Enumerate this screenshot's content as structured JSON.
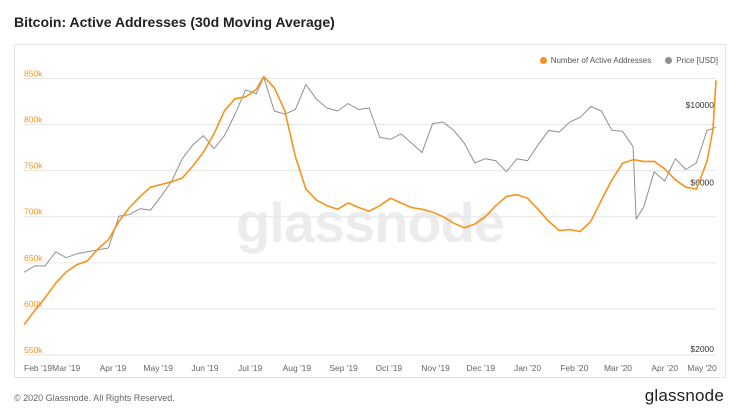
{
  "title": "Bitcoin: Active Addresses (30d Moving Average)",
  "footer": {
    "copyright": "© 2020 Glassnode. All Rights Reserved.",
    "logo": "glassnode"
  },
  "watermark": "glassnode",
  "colors": {
    "addresses": "#f7931a",
    "price": "#909090",
    "grid": "#e6e6e6",
    "axis_text": "#666666"
  },
  "chart_data": {
    "type": "line",
    "title": "Bitcoin: Active Addresses (30d Moving Average)",
    "legend_placement": "top-right",
    "grid": true,
    "x_ticks": [
      "Feb '19",
      "Mar '19",
      "Apr '19",
      "May '19",
      "Jun '19",
      "Jul '19",
      "Aug '19",
      "Sep '19",
      "Oct '19",
      "Nov '19",
      "Dec '19",
      "Jan '20",
      "Feb '20",
      "Mar '20",
      "Apr '20",
      "May '20"
    ],
    "y_left": {
      "ticks": [
        "550k",
        "600k",
        "650k",
        "700k",
        "750k",
        "800k",
        "850k"
      ],
      "range": [
        550000,
        870000
      ]
    },
    "y_right": {
      "ticks": [
        "$2000",
        "$6000",
        "$10000"
      ],
      "scale": "log",
      "range": [
        2000,
        14000
      ]
    },
    "x_range": [
      "2019-02-01",
      "2020-05-05"
    ],
    "series": [
      {
        "name": "Number of Active Addresses",
        "axis": "left",
        "color": "#f7931a",
        "points": [
          [
            "2019-02-01",
            583000
          ],
          [
            "2019-02-08",
            598000
          ],
          [
            "2019-02-15",
            612000
          ],
          [
            "2019-02-22",
            628000
          ],
          [
            "2019-03-01",
            640000
          ],
          [
            "2019-03-08",
            648000
          ],
          [
            "2019-03-15",
            652000
          ],
          [
            "2019-03-22",
            665000
          ],
          [
            "2019-03-29",
            675000
          ],
          [
            "2019-04-05",
            695000
          ],
          [
            "2019-04-12",
            710000
          ],
          [
            "2019-04-19",
            722000
          ],
          [
            "2019-04-26",
            732000
          ],
          [
            "2019-05-03",
            735000
          ],
          [
            "2019-05-10",
            738000
          ],
          [
            "2019-05-17",
            742000
          ],
          [
            "2019-05-24",
            755000
          ],
          [
            "2019-05-31",
            770000
          ],
          [
            "2019-06-07",
            790000
          ],
          [
            "2019-06-14",
            815000
          ],
          [
            "2019-06-21",
            828000
          ],
          [
            "2019-06-28",
            830000
          ],
          [
            "2019-07-05",
            838000
          ],
          [
            "2019-07-10",
            852000
          ],
          [
            "2019-07-17",
            840000
          ],
          [
            "2019-07-24",
            815000
          ],
          [
            "2019-07-31",
            765000
          ],
          [
            "2019-08-07",
            730000
          ],
          [
            "2019-08-14",
            718000
          ],
          [
            "2019-08-21",
            712000
          ],
          [
            "2019-08-28",
            708000
          ],
          [
            "2019-09-04",
            715000
          ],
          [
            "2019-09-11",
            710000
          ],
          [
            "2019-09-18",
            706000
          ],
          [
            "2019-09-25",
            712000
          ],
          [
            "2019-10-02",
            720000
          ],
          [
            "2019-10-09",
            715000
          ],
          [
            "2019-10-16",
            710000
          ],
          [
            "2019-10-23",
            708000
          ],
          [
            "2019-10-30",
            705000
          ],
          [
            "2019-11-06",
            700000
          ],
          [
            "2019-11-13",
            693000
          ],
          [
            "2019-11-20",
            688000
          ],
          [
            "2019-11-27",
            692000
          ],
          [
            "2019-12-04",
            700000
          ],
          [
            "2019-12-11",
            712000
          ],
          [
            "2019-12-18",
            722000
          ],
          [
            "2019-12-25",
            724000
          ],
          [
            "2020-01-01",
            720000
          ],
          [
            "2020-01-08",
            708000
          ],
          [
            "2020-01-15",
            695000
          ],
          [
            "2020-01-22",
            685000
          ],
          [
            "2020-01-29",
            686000
          ],
          [
            "2020-02-05",
            684000
          ],
          [
            "2020-02-12",
            695000
          ],
          [
            "2020-02-19",
            718000
          ],
          [
            "2020-02-26",
            740000
          ],
          [
            "2020-03-04",
            758000
          ],
          [
            "2020-03-11",
            762000
          ],
          [
            "2020-03-18",
            760000
          ],
          [
            "2020-03-25",
            760000
          ],
          [
            "2020-04-01",
            752000
          ],
          [
            "2020-04-08",
            740000
          ],
          [
            "2020-04-15",
            732000
          ],
          [
            "2020-04-22",
            730000
          ],
          [
            "2020-04-29",
            760000
          ],
          [
            "2020-05-03",
            795000
          ],
          [
            "2020-05-05",
            848000
          ]
        ]
      },
      {
        "name": "Price [USD]",
        "axis": "right",
        "color": "#909090",
        "points": [
          [
            "2019-02-01",
            3450
          ],
          [
            "2019-02-08",
            3600
          ],
          [
            "2019-02-15",
            3600
          ],
          [
            "2019-02-22",
            3950
          ],
          [
            "2019-03-01",
            3800
          ],
          [
            "2019-03-08",
            3900
          ],
          [
            "2019-03-15",
            3950
          ],
          [
            "2019-03-22",
            4000
          ],
          [
            "2019-03-29",
            4050
          ],
          [
            "2019-04-05",
            5000
          ],
          [
            "2019-04-12",
            5050
          ],
          [
            "2019-04-19",
            5250
          ],
          [
            "2019-04-26",
            5200
          ],
          [
            "2019-05-03",
            5700
          ],
          [
            "2019-05-10",
            6300
          ],
          [
            "2019-05-17",
            7300
          ],
          [
            "2019-05-24",
            8000
          ],
          [
            "2019-05-31",
            8500
          ],
          [
            "2019-06-07",
            7800
          ],
          [
            "2019-06-14",
            8500
          ],
          [
            "2019-06-21",
            9800
          ],
          [
            "2019-06-28",
            11500
          ],
          [
            "2019-07-05",
            11200
          ],
          [
            "2019-07-10",
            12500
          ],
          [
            "2019-07-17",
            10000
          ],
          [
            "2019-07-24",
            9800
          ],
          [
            "2019-07-31",
            10100
          ],
          [
            "2019-08-07",
            11900
          ],
          [
            "2019-08-14",
            10800
          ],
          [
            "2019-08-21",
            10200
          ],
          [
            "2019-08-28",
            10000
          ],
          [
            "2019-09-04",
            10500
          ],
          [
            "2019-09-11",
            10100
          ],
          [
            "2019-09-18",
            10200
          ],
          [
            "2019-09-25",
            8400
          ],
          [
            "2019-10-02",
            8300
          ],
          [
            "2019-10-09",
            8600
          ],
          [
            "2019-10-16",
            8100
          ],
          [
            "2019-10-23",
            7600
          ],
          [
            "2019-10-30",
            9200
          ],
          [
            "2019-11-06",
            9300
          ],
          [
            "2019-11-13",
            8800
          ],
          [
            "2019-11-20",
            8100
          ],
          [
            "2019-11-27",
            7100
          ],
          [
            "2019-12-04",
            7300
          ],
          [
            "2019-12-11",
            7200
          ],
          [
            "2019-12-18",
            6700
          ],
          [
            "2019-12-25",
            7300
          ],
          [
            "2020-01-01",
            7200
          ],
          [
            "2020-01-08",
            8000
          ],
          [
            "2020-01-15",
            8800
          ],
          [
            "2020-01-22",
            8700
          ],
          [
            "2020-01-29",
            9300
          ],
          [
            "2020-02-05",
            9600
          ],
          [
            "2020-02-12",
            10300
          ],
          [
            "2020-02-19",
            10000
          ],
          [
            "2020-02-26",
            8800
          ],
          [
            "2020-03-04",
            8750
          ],
          [
            "2020-03-11",
            7900
          ],
          [
            "2020-03-13",
            4900
          ],
          [
            "2020-03-18",
            5300
          ],
          [
            "2020-03-25",
            6700
          ],
          [
            "2020-04-01",
            6300
          ],
          [
            "2020-04-08",
            7300
          ],
          [
            "2020-04-15",
            6800
          ],
          [
            "2020-04-22",
            7100
          ],
          [
            "2020-04-29",
            8800
          ],
          [
            "2020-05-03",
            8900
          ],
          [
            "2020-05-05",
            9000
          ]
        ]
      }
    ]
  }
}
